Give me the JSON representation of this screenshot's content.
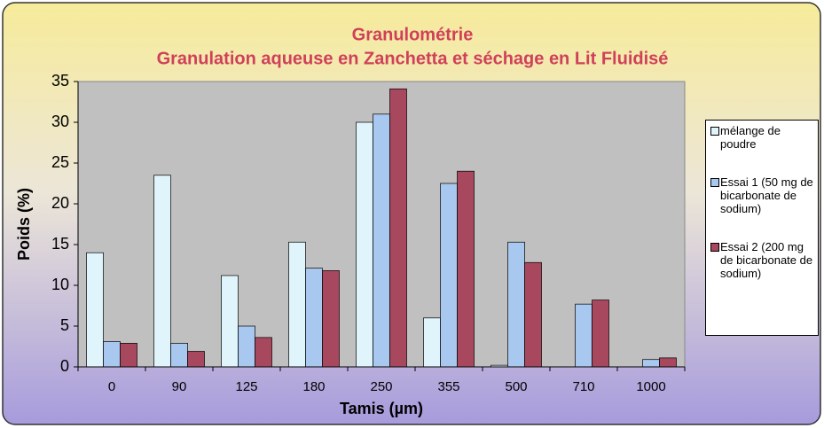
{
  "chart_data": {
    "type": "bar",
    "title": "Granulométrie",
    "subtitle": "Granulation aqueuse en Zanchetta et séchage en Lit Fluidisé",
    "x_label": "Tamis (µm)",
    "y_label": "Poids (%)",
    "categories": [
      "0",
      "90",
      "125",
      "180",
      "250",
      "355",
      "500",
      "710",
      "1000"
    ],
    "series": [
      {
        "name": "mélange de poudre",
        "color": "#e0f4fb",
        "values": [
          14,
          23.5,
          11.2,
          15.3,
          30,
          6,
          0.2,
          0,
          0
        ]
      },
      {
        "name": "Essai 1 (50 mg de bicarbonate de sodium)",
        "color": "#a9c8ef",
        "values": [
          3.1,
          2.9,
          5,
          12.1,
          31,
          22.5,
          15.3,
          7.7,
          0.9
        ]
      },
      {
        "name": "Essai 2 (200 mg de bicarbonate de sodium)",
        "color": "#a8485f",
        "values": [
          2.9,
          1.9,
          3.6,
          11.8,
          34.1,
          24,
          12.8,
          8.2,
          1.1
        ]
      }
    ],
    "ylim": [
      0,
      35
    ],
    "yticks": [
      0,
      5,
      10,
      15,
      20,
      25,
      30,
      35
    ],
    "grid": false,
    "legend": "right"
  }
}
